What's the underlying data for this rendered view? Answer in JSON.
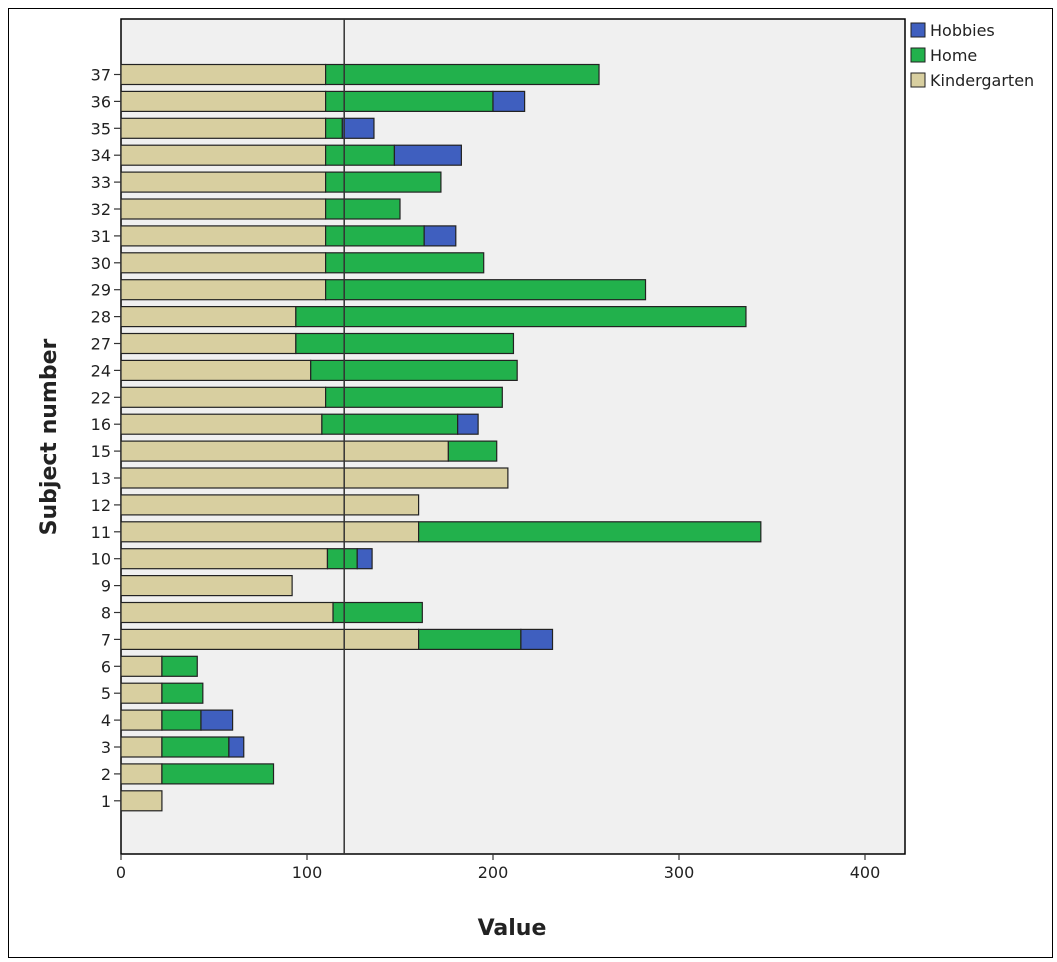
{
  "chart_data": {
    "type": "bar",
    "orientation": "horizontal",
    "stacked": true,
    "xlabel": "Value",
    "ylabel": "Subject number",
    "xlim": [
      0,
      420
    ],
    "x_ticks": [
      0,
      100,
      200,
      300,
      400
    ],
    "reference_line_x": 120,
    "grid": false,
    "legend_position": "top-right",
    "categories": [
      "37",
      "36",
      "35",
      "34",
      "33",
      "32",
      "31",
      "30",
      "29",
      "28",
      "27",
      "24",
      "22",
      "16",
      "15",
      "13",
      "12",
      "11",
      "10",
      "9",
      "8",
      "7",
      "6",
      "5",
      "4",
      "3",
      "2",
      "1"
    ],
    "series": [
      {
        "name": "Kindergarten",
        "color": "#d8cfa0",
        "values": [
          110,
          110,
          110,
          110,
          110,
          110,
          110,
          110,
          110,
          94,
          94,
          102,
          110,
          108,
          176,
          208,
          160,
          160,
          111,
          92,
          114,
          160,
          22,
          22,
          22,
          22,
          22,
          22
        ]
      },
      {
        "name": "Home",
        "color": "#22b14c",
        "values": [
          147,
          90,
          9,
          37,
          62,
          40,
          53,
          85,
          172,
          242,
          117,
          111,
          95,
          73,
          26,
          0,
          0,
          184,
          16,
          0,
          48,
          55,
          19,
          22,
          21,
          36,
          60,
          0
        ]
      },
      {
        "name": "Hobbies",
        "color": "#3f5fbf",
        "values": [
          0,
          17,
          17,
          36,
          0,
          0,
          17,
          0,
          0,
          0,
          0,
          0,
          0,
          11,
          0,
          0,
          0,
          0,
          8,
          0,
          0,
          17,
          0,
          0,
          17,
          8,
          0,
          0
        ]
      }
    ],
    "legend_order": [
      "Hobbies",
      "Home",
      "Kindergarten"
    ]
  }
}
